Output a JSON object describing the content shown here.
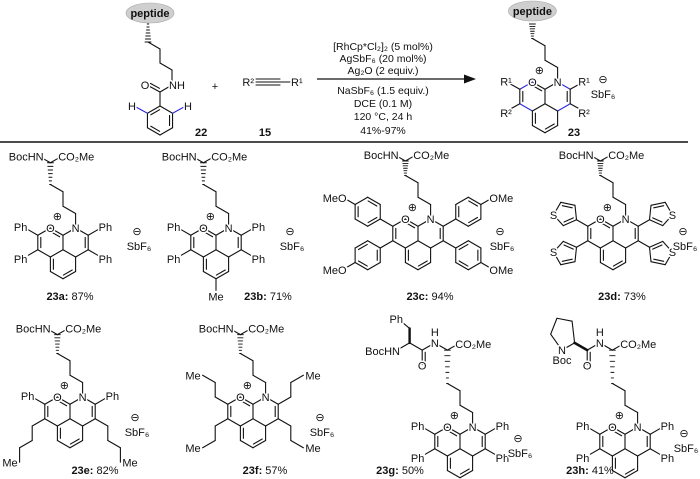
{
  "scheme": {
    "starting_material": {
      "tag": "peptide",
      "label": "22",
      "amide_O": "O",
      "amide_NH": "NH",
      "ortho_H": "H"
    },
    "plus": "+",
    "alkyne": {
      "left": "R²",
      "right": "R¹",
      "label": "15"
    },
    "conditions_above": [
      "[RhCp*Cl₂]₂ (5 mol%)",
      "AgSbF₆ (20 mol%)",
      "Ag₂O (2 equiv.)"
    ],
    "conditions_below": [
      "NaSbF₆ (1.5 equiv.)",
      "DCE (0.1 M)",
      "120 °C, 24 h",
      "41%-97%"
    ],
    "product": {
      "tag": "peptide",
      "label": "23",
      "R1": "R¹",
      "R2": "R²",
      "counterion": "SbF₆"
    }
  },
  "atoms": {
    "O": "O",
    "N": "N",
    "plus": "⊕",
    "minus": "⊖"
  },
  "colors": {
    "new_bond": "#2b2bdc",
    "ortho_H": "#2b2bdc",
    "peptide_fill": "#cfcfcf",
    "ink": "#111111"
  },
  "compounds": [
    {
      "label": "23a",
      "yield": "87%",
      "counterion": "SbF₆",
      "top": {
        "type": "lys",
        "left": "BocHN",
        "right": "CO₂Me"
      },
      "r1": {
        "type": "text",
        "left": "Ph",
        "right": "Ph"
      },
      "r2": {
        "type": "text",
        "left": "Ph",
        "right": "Ph"
      }
    },
    {
      "label": "23b",
      "yield": "71%",
      "counterion": "SbF₆",
      "ring_substituent": "Me",
      "top": {
        "type": "lys",
        "left": "BocHN",
        "right": "CO₂Me"
      },
      "r1": {
        "type": "text",
        "left": "Ph",
        "right": "Ph"
      },
      "r2": {
        "type": "text",
        "left": "Ph",
        "right": "Ph"
      }
    },
    {
      "label": "23c",
      "yield": "94%",
      "counterion": "SbF₆",
      "top": {
        "type": "lys",
        "left": "BocHN",
        "right": "CO₂Me"
      },
      "r1": {
        "type": "aryl",
        "left": "MeO",
        "right": "OMe"
      },
      "r2": {
        "type": "aryl",
        "left": "MeO",
        "right": "OMe"
      }
    },
    {
      "label": "23d",
      "yield": "73%",
      "counterion": "SbF₆",
      "top": {
        "type": "lys",
        "left": "BocHN",
        "right": "CO₂Me"
      },
      "r1": {
        "type": "thienyl",
        "left": "S",
        "right": "S"
      },
      "r2": {
        "type": "thienyl",
        "left": "S",
        "right": "S"
      }
    },
    {
      "label": "23e",
      "yield": "82%",
      "counterion": "SbF₆",
      "top": {
        "type": "lys",
        "left": "BocHN",
        "right": "CO₂Me"
      },
      "r1": {
        "type": "text",
        "left": "Ph",
        "right": "Ph"
      },
      "r2": {
        "type": "alkyl",
        "carbons": 4,
        "left": "Me",
        "right": "Me"
      }
    },
    {
      "label": "23f",
      "yield": "57%",
      "counterion": "SbF₆",
      "top": {
        "type": "lys",
        "left": "BocHN",
        "right": "CO₂Me"
      },
      "r1": {
        "type": "alkyl",
        "carbons": 3,
        "left": "Me",
        "right": "Me"
      },
      "r2": {
        "type": "alkyl",
        "carbons": 3,
        "left": "Me",
        "right": "Me"
      }
    },
    {
      "label": "23g",
      "yield": "50%",
      "counterion": "SbF₆",
      "top": {
        "type": "phe-lys",
        "left": "BocHN",
        "right": "CO₂Me",
        "nh": "N",
        "h": "H",
        "o": "O",
        "ph": "Ph"
      },
      "r1": {
        "type": "text",
        "left": "Ph",
        "right": "Ph"
      },
      "r2": {
        "type": "text",
        "left": "Ph",
        "right": "Ph"
      }
    },
    {
      "label": "23h",
      "yield": "41%",
      "counterion": "SbF₆",
      "top": {
        "type": "pro-lys",
        "right": "CO₂Me",
        "nh": "N",
        "h": "H",
        "o": "O",
        "n": "N",
        "boc": "Boc"
      },
      "r1": {
        "type": "text",
        "left": "Ph",
        "right": "Ph"
      },
      "r2": {
        "type": "text",
        "left": "Ph",
        "right": "Ph"
      }
    }
  ]
}
